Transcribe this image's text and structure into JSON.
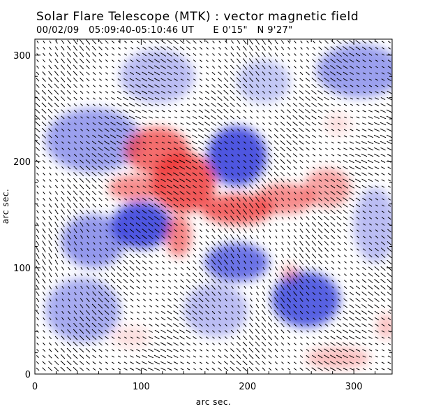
{
  "figure": {
    "title": "Solar Flare Telescope (MTK) : vector magnetic field",
    "subtitle": "00/02/09   05:09:40-05:10:46 UT      E 0'15\"   N 9'27\""
  },
  "axes": {
    "xlabel": "arc sec.",
    "ylabel": "arc sec.",
    "xlim": [
      0,
      336
    ],
    "ylim": [
      0,
      315
    ],
    "xticks": [
      0,
      100,
      200,
      300
    ],
    "yticks": [
      0,
      100,
      200,
      300
    ]
  },
  "colors": {
    "positive": "#ee3030",
    "negative": "#3a44dd",
    "neutral": "#ffffff",
    "vectors": "#000000"
  },
  "map": {
    "positive_regions": [
      {
        "x": 140,
        "y": 180,
        "rx": 30,
        "ry": 28,
        "strength": 0.8
      },
      {
        "x": 115,
        "y": 210,
        "rx": 30,
        "ry": 22,
        "strength": 0.7
      },
      {
        "x": 95,
        "y": 175,
        "rx": 26,
        "ry": 12,
        "strength": 0.55
      },
      {
        "x": 190,
        "y": 155,
        "rx": 34,
        "ry": 14,
        "strength": 0.75
      },
      {
        "x": 235,
        "y": 165,
        "rx": 28,
        "ry": 14,
        "strength": 0.55
      },
      {
        "x": 275,
        "y": 175,
        "rx": 22,
        "ry": 18,
        "strength": 0.45
      },
      {
        "x": 135,
        "y": 130,
        "rx": 12,
        "ry": 20,
        "strength": 0.6
      },
      {
        "x": 240,
        "y": 95,
        "rx": 8,
        "ry": 8,
        "strength": 0.35
      },
      {
        "x": 285,
        "y": 15,
        "rx": 30,
        "ry": 10,
        "strength": 0.3
      },
      {
        "x": 90,
        "y": 35,
        "rx": 18,
        "ry": 10,
        "strength": 0.15
      },
      {
        "x": 330,
        "y": 45,
        "rx": 8,
        "ry": 12,
        "strength": 0.3
      },
      {
        "x": 285,
        "y": 235,
        "rx": 12,
        "ry": 10,
        "strength": 0.15
      }
    ],
    "negative_regions": [
      {
        "x": 190,
        "y": 205,
        "rx": 28,
        "ry": 28,
        "strength": 0.9
      },
      {
        "x": 100,
        "y": 140,
        "rx": 28,
        "ry": 22,
        "strength": 0.9
      },
      {
        "x": 55,
        "y": 125,
        "rx": 30,
        "ry": 25,
        "strength": 0.55
      },
      {
        "x": 190,
        "y": 105,
        "rx": 30,
        "ry": 18,
        "strength": 0.75
      },
      {
        "x": 255,
        "y": 70,
        "rx": 32,
        "ry": 26,
        "strength": 0.85
      },
      {
        "x": 55,
        "y": 220,
        "rx": 45,
        "ry": 30,
        "strength": 0.5
      },
      {
        "x": 45,
        "y": 60,
        "rx": 35,
        "ry": 30,
        "strength": 0.45
      },
      {
        "x": 170,
        "y": 60,
        "rx": 30,
        "ry": 25,
        "strength": 0.35
      },
      {
        "x": 305,
        "y": 285,
        "rx": 40,
        "ry": 25,
        "strength": 0.5
      },
      {
        "x": 115,
        "y": 280,
        "rx": 35,
        "ry": 25,
        "strength": 0.35
      },
      {
        "x": 320,
        "y": 140,
        "rx": 20,
        "ry": 35,
        "strength": 0.35
      },
      {
        "x": 215,
        "y": 275,
        "rx": 25,
        "ry": 20,
        "strength": 0.3
      }
    ]
  }
}
